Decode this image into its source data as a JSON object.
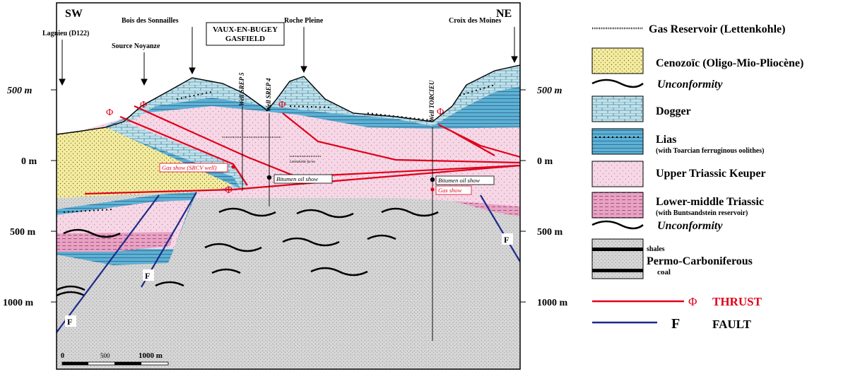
{
  "orientation": {
    "left": "SW",
    "right": "NE"
  },
  "depth_scale": {
    "left": [
      "500 m",
      "0 m",
      "500 m",
      "1000 m"
    ],
    "right": [
      "500 m",
      "0 m",
      "500 m",
      "1000 m"
    ]
  },
  "scale_bar": {
    "zero": "0",
    "mid": "500",
    "end": "1000 m"
  },
  "locations": {
    "lagnieu": "Lagnieu (D122)",
    "bois": "Bois des Sonnailles",
    "source": "Source Noyanze",
    "roche": "Roche Pleine",
    "croix": "Croix des Moines"
  },
  "gasfield": {
    "line1": "VAUX-EN-BUGEY",
    "line2": "GASFIELD"
  },
  "wells": {
    "srep5": "Well SREP 5",
    "srep4": "Well SREP 4",
    "torcieu": "Well TORCIEU"
  },
  "annotations": {
    "gas_show_srcv": "Gas show (SRCV well)",
    "bitumen_1": "Bitumen oil show",
    "bitumen_2": "Bitumen oil show",
    "gas_show": "Gas show",
    "lettenkohle_facies": "Lettenkohle facies"
  },
  "symbols": {
    "thrust": "Φ",
    "fault": "F"
  },
  "legend": {
    "gas_reservoir": "Gas Reservoir (Lettenkohle)",
    "cenozoic": "Cenozoïc (Oligo-Mio-Pliocène)",
    "unconformity_1": "Unconformity",
    "dogger": "Dogger",
    "lias": "Lias",
    "lias_sub": "(with Toarcian ferruginous oolithes)",
    "keuper": "Upper Triassic Keuper",
    "lower_triassic": "Lower-middle Triassic",
    "lower_triassic_sub": "(with Buntsandstein reservoir)",
    "unconformity_2": "Unconformity",
    "shales": "shales",
    "permo": "Permo-Carboniferous",
    "coal": "coal",
    "thrust_symbol": "Φ",
    "thrust": "THRUST",
    "fault_symbol": "F",
    "fault": "FAULT"
  },
  "colors": {
    "cenozoic": "#f3eca0",
    "dogger": "#bfe3ee",
    "lias": "#5cb0d6",
    "keuper": "#f6d7e6",
    "lower_triassic": "#e8a2c4",
    "permo": "#d6d6d6",
    "thrust": "#e1001a",
    "fault": "#1c2a8a"
  }
}
